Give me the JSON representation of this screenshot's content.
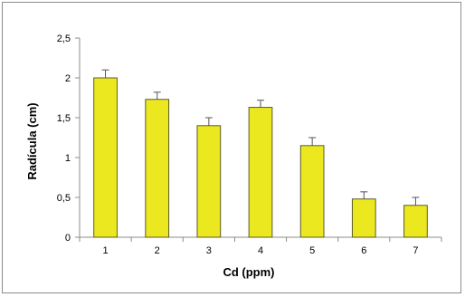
{
  "chart_data": {
    "type": "bar",
    "title": "",
    "xlabel": "Cd (ppm)",
    "ylabel": "Radícula (cm)",
    "categories": [
      "1",
      "2",
      "3",
      "4",
      "5",
      "6",
      "7"
    ],
    "values": [
      2.0,
      1.73,
      1.4,
      1.63,
      1.15,
      0.48,
      0.4
    ],
    "errors": [
      0.1,
      0.09,
      0.1,
      0.09,
      0.1,
      0.09,
      0.1
    ],
    "ylim": [
      0,
      2.5
    ],
    "yticks": [
      0,
      0.5,
      1,
      1.5,
      2,
      2.5
    ],
    "ytick_labels": [
      "0",
      "0,5",
      "1",
      "1,5",
      "2",
      "2,5"
    ],
    "grid": false,
    "legend": "none",
    "bar_color": "#ece81f",
    "bar_edge_color": "#5a5a2a"
  }
}
